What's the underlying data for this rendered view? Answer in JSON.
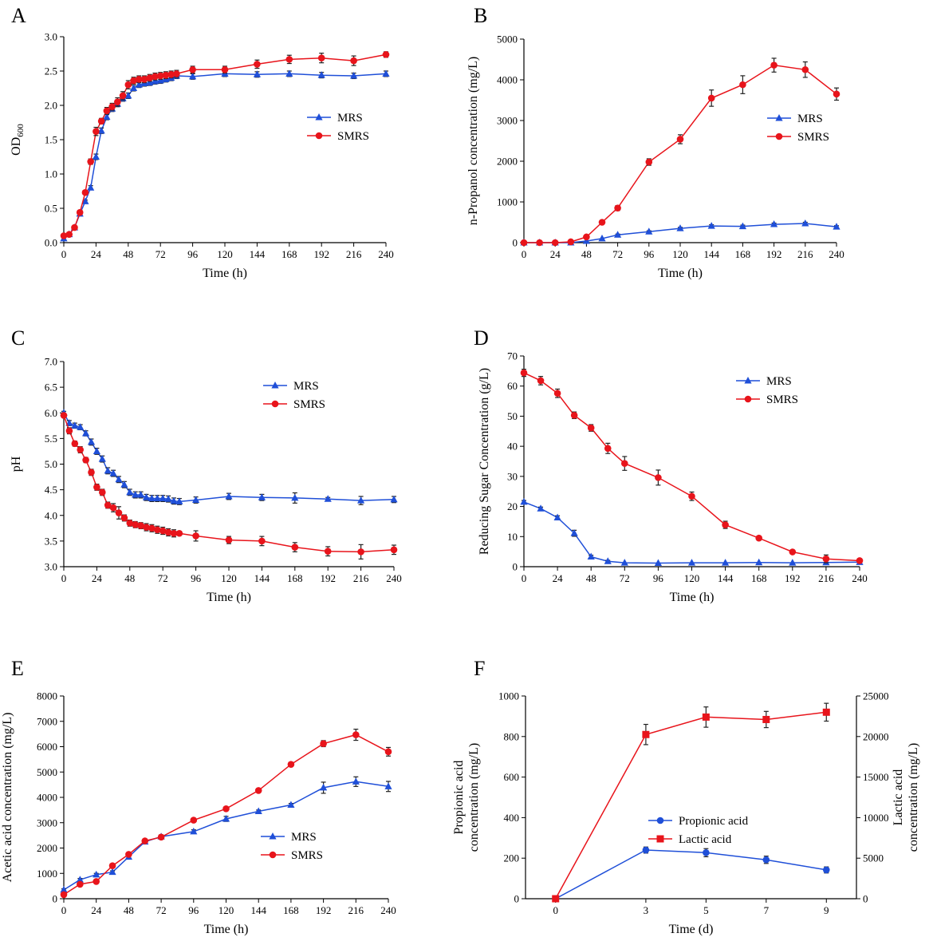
{
  "colors": {
    "MRS": "#1f4fd8",
    "SMRS": "#e8141b",
    "Propionic acid": "#1f4fd8",
    "Lactic acid": "#e8141b"
  },
  "chart_data": [
    {
      "panel_label": "A",
      "type": "line",
      "xlabel": "Time (h)",
      "ylabel": "OD600",
      "ylabel_main": "OD",
      "ylabel_sub": "600",
      "xlim": [
        0,
        240
      ],
      "ylim": [
        0,
        3.0
      ],
      "xticks": [
        0,
        24,
        48,
        72,
        96,
        120,
        144,
        168,
        192,
        216,
        240
      ],
      "yticks": [
        0.0,
        0.5,
        1.0,
        1.5,
        2.0,
        2.5,
        3.0
      ],
      "ytick_labels": [
        "0.0",
        "0.5",
        "1.0",
        "1.5",
        "2.0",
        "2.5",
        "3.0"
      ],
      "legend": [
        "MRS",
        "SMRS"
      ],
      "series": [
        {
          "name": "MRS",
          "marker": "triangle",
          "x": [
            0,
            4,
            8,
            12,
            16,
            20,
            24,
            28,
            32,
            36,
            40,
            44,
            48,
            52,
            56,
            60,
            64,
            68,
            72,
            76,
            80,
            84,
            96,
            120,
            144,
            168,
            192,
            216,
            240
          ],
          "y": [
            0.06,
            0.12,
            0.22,
            0.42,
            0.6,
            0.8,
            1.25,
            1.63,
            1.83,
            1.95,
            2.02,
            2.1,
            2.14,
            2.25,
            2.3,
            2.32,
            2.33,
            2.35,
            2.36,
            2.38,
            2.4,
            2.43,
            2.42,
            2.46,
            2.45,
            2.46,
            2.44,
            2.43,
            2.46
          ],
          "err": [
            0.01,
            0.01,
            0.02,
            0.02,
            0.02,
            0.03,
            0.04,
            0.04,
            0.04,
            0.04,
            0.04,
            0.04,
            0.04,
            0.04,
            0.04,
            0.04,
            0.04,
            0.04,
            0.04,
            0.04,
            0.04,
            0.04,
            0.04,
            0.04,
            0.04,
            0.04,
            0.04,
            0.04,
            0.04
          ]
        },
        {
          "name": "SMRS",
          "marker": "circle",
          "x": [
            0,
            4,
            8,
            12,
            16,
            20,
            24,
            28,
            32,
            36,
            40,
            44,
            48,
            52,
            56,
            60,
            64,
            68,
            72,
            76,
            80,
            84,
            96,
            120,
            144,
            168,
            192,
            216,
            240
          ],
          "y": [
            0.1,
            0.12,
            0.22,
            0.44,
            0.73,
            1.18,
            1.62,
            1.77,
            1.92,
            1.98,
            2.05,
            2.14,
            2.3,
            2.36,
            2.38,
            2.38,
            2.4,
            2.42,
            2.43,
            2.44,
            2.45,
            2.46,
            2.52,
            2.52,
            2.6,
            2.67,
            2.69,
            2.65,
            2.74
          ],
          "err": [
            0.01,
            0.02,
            0.02,
            0.03,
            0.03,
            0.04,
            0.06,
            0.04,
            0.05,
            0.05,
            0.06,
            0.06,
            0.06,
            0.05,
            0.05,
            0.05,
            0.05,
            0.05,
            0.05,
            0.05,
            0.05,
            0.05,
            0.05,
            0.05,
            0.06,
            0.06,
            0.07,
            0.07,
            0.04
          ]
        }
      ]
    },
    {
      "panel_label": "B",
      "type": "line",
      "xlabel": "Time (h)",
      "ylabel": "n-Propanol concentration (mg/L)",
      "xlim": [
        0,
        240
      ],
      "ylim": [
        0,
        5000
      ],
      "xticks": [
        0,
        24,
        48,
        72,
        96,
        120,
        144,
        168,
        192,
        216,
        240
      ],
      "yticks": [
        0,
        1000,
        2000,
        3000,
        4000,
        5000
      ],
      "ytick_labels": [
        "0",
        "1000",
        "2000",
        "3000",
        "4000",
        "5000"
      ],
      "legend": [
        "MRS",
        "SMRS"
      ],
      "series": [
        {
          "name": "MRS",
          "marker": "triangle",
          "x": [
            0,
            12,
            24,
            36,
            48,
            60,
            72,
            96,
            120,
            144,
            168,
            192,
            216,
            240
          ],
          "y": [
            0,
            0,
            0,
            0,
            40,
            100,
            190,
            270,
            350,
            410,
            400,
            450,
            470,
            390
          ],
          "err": [
            5,
            5,
            5,
            5,
            10,
            15,
            20,
            20,
            25,
            30,
            30,
            30,
            30,
            25
          ]
        },
        {
          "name": "SMRS",
          "marker": "circle",
          "x": [
            0,
            12,
            24,
            36,
            48,
            60,
            72,
            96,
            120,
            144,
            168,
            192,
            216,
            240
          ],
          "y": [
            0,
            0,
            0,
            20,
            140,
            500,
            850,
            1980,
            2540,
            3550,
            3880,
            4360,
            4250,
            3650
          ],
          "err": [
            5,
            5,
            5,
            10,
            20,
            40,
            60,
            80,
            110,
            200,
            220,
            170,
            190,
            150
          ]
        }
      ]
    },
    {
      "panel_label": "C",
      "type": "line",
      "xlabel": "Time (h)",
      "ylabel": "pH",
      "xlim": [
        0,
        240
      ],
      "ylim": [
        3.0,
        7.0
      ],
      "xticks": [
        0,
        24,
        48,
        72,
        96,
        120,
        144,
        168,
        192,
        216,
        240
      ],
      "yticks": [
        3.0,
        3.5,
        4.0,
        4.5,
        5.0,
        5.5,
        6.0,
        6.5,
        7.0
      ],
      "ytick_labels": [
        "3.0",
        "3.5",
        "4.0",
        "4.5",
        "5.0",
        "5.5",
        "6.0",
        "6.5",
        "7.0"
      ],
      "legend": [
        "MRS",
        "SMRS"
      ],
      "series": [
        {
          "name": "MRS",
          "marker": "triangle",
          "x": [
            0,
            4,
            8,
            12,
            16,
            20,
            24,
            28,
            32,
            36,
            40,
            44,
            48,
            52,
            56,
            60,
            64,
            68,
            72,
            76,
            80,
            84,
            96,
            120,
            144,
            168,
            192,
            216,
            240
          ],
          "y": [
            6.0,
            5.8,
            5.75,
            5.72,
            5.6,
            5.43,
            5.25,
            5.1,
            4.87,
            4.82,
            4.7,
            4.6,
            4.45,
            4.4,
            4.4,
            4.35,
            4.33,
            4.33,
            4.33,
            4.32,
            4.28,
            4.27,
            4.3,
            4.37,
            4.35,
            4.34,
            4.32,
            4.29,
            4.31
          ],
          "err": [
            0.03,
            0.05,
            0.05,
            0.05,
            0.05,
            0.06,
            0.06,
            0.06,
            0.06,
            0.06,
            0.06,
            0.06,
            0.06,
            0.06,
            0.06,
            0.06,
            0.06,
            0.06,
            0.06,
            0.06,
            0.06,
            0.06,
            0.06,
            0.06,
            0.06,
            0.1,
            0.03,
            0.08,
            0.06
          ]
        },
        {
          "name": "SMRS",
          "marker": "circle",
          "x": [
            0,
            4,
            8,
            12,
            16,
            20,
            24,
            28,
            32,
            36,
            40,
            44,
            48,
            52,
            56,
            60,
            64,
            68,
            72,
            76,
            80,
            84,
            96,
            120,
            144,
            168,
            192,
            216,
            240
          ],
          "y": [
            5.95,
            5.65,
            5.4,
            5.28,
            5.08,
            4.84,
            4.55,
            4.45,
            4.2,
            4.15,
            4.05,
            3.95,
            3.85,
            3.82,
            3.8,
            3.77,
            3.75,
            3.72,
            3.7,
            3.67,
            3.65,
            3.65,
            3.6,
            3.52,
            3.5,
            3.38,
            3.3,
            3.29,
            3.33
          ],
          "err": [
            0.04,
            0.06,
            0.05,
            0.06,
            0.05,
            0.06,
            0.06,
            0.06,
            0.06,
            0.08,
            0.12,
            0.06,
            0.06,
            0.06,
            0.06,
            0.07,
            0.07,
            0.07,
            0.07,
            0.07,
            0.07,
            0.04,
            0.1,
            0.07,
            0.09,
            0.09,
            0.09,
            0.14,
            0.09
          ]
        }
      ]
    },
    {
      "panel_label": "D",
      "type": "line",
      "xlabel": "Time (h)",
      "ylabel": "Reducing Sugar Concentration (g/L)",
      "xlim": [
        0,
        240
      ],
      "ylim": [
        0,
        70
      ],
      "xticks": [
        0,
        24,
        48,
        72,
        96,
        120,
        144,
        168,
        192,
        216,
        240
      ],
      "yticks": [
        0,
        10,
        20,
        30,
        40,
        50,
        60,
        70
      ],
      "ytick_labels": [
        "0",
        "10",
        "20",
        "30",
        "40",
        "50",
        "60",
        "70"
      ],
      "legend": [
        "MRS",
        "SMRS"
      ],
      "series": [
        {
          "name": "MRS",
          "marker": "triangle",
          "x": [
            0,
            12,
            24,
            36,
            48,
            60,
            72,
            96,
            120,
            144,
            168,
            192,
            216,
            240
          ],
          "y": [
            21.5,
            19.3,
            16.3,
            11.1,
            3.3,
            1.8,
            1.3,
            1.2,
            1.3,
            1.3,
            1.4,
            1.3,
            1.4,
            1.5
          ],
          "err": [
            0.5,
            0.5,
            0.6,
            1.0,
            0.5,
            0.3,
            0.2,
            0.2,
            0.2,
            0.2,
            0.2,
            0.2,
            0.2,
            0.2
          ]
        },
        {
          "name": "SMRS",
          "marker": "circle",
          "x": [
            0,
            12,
            24,
            36,
            48,
            60,
            72,
            96,
            120,
            144,
            168,
            192,
            216,
            240
          ],
          "y": [
            64.4,
            61.8,
            57.6,
            50.3,
            46.1,
            39.3,
            34.3,
            29.6,
            23.4,
            13.9,
            9.5,
            4.9,
            2.6,
            2.0
          ],
          "err": [
            1.2,
            1.4,
            1.4,
            1.1,
            1.1,
            1.7,
            2.3,
            2.5,
            1.4,
            1.2,
            0.5,
            0.6,
            1.3,
            0.4
          ]
        }
      ]
    },
    {
      "panel_label": "E",
      "type": "line",
      "xlabel": "Time (h)",
      "ylabel": "Acetic acid concentration (mg/L)",
      "xlim": [
        0,
        240
      ],
      "ylim": [
        0,
        8000
      ],
      "xticks": [
        0,
        24,
        48,
        72,
        96,
        120,
        144,
        168,
        192,
        216,
        240
      ],
      "yticks": [
        0,
        1000,
        2000,
        3000,
        4000,
        5000,
        6000,
        7000,
        8000
      ],
      "ytick_labels": [
        "0",
        "1000",
        "2000",
        "3000",
        "4000",
        "5000",
        "6000",
        "7000",
        "8000"
      ],
      "legend": [
        "MRS",
        "SMRS"
      ],
      "series": [
        {
          "name": "MRS",
          "marker": "triangle",
          "x": [
            0,
            12,
            24,
            36,
            48,
            60,
            72,
            96,
            120,
            144,
            168,
            192,
            216,
            240
          ],
          "y": [
            350,
            750,
            950,
            1050,
            1650,
            2250,
            2450,
            2650,
            3150,
            3450,
            3700,
            4380,
            4620,
            4430
          ],
          "err": [
            40,
            50,
            50,
            50,
            60,
            60,
            70,
            70,
            100,
            50,
            60,
            220,
            190,
            200
          ]
        },
        {
          "name": "SMRS",
          "marker": "circle",
          "x": [
            0,
            12,
            24,
            36,
            48,
            60,
            72,
            96,
            120,
            144,
            168,
            192,
            216,
            240
          ],
          "y": [
            160,
            570,
            680,
            1300,
            1750,
            2280,
            2430,
            3100,
            3550,
            4270,
            5300,
            6120,
            6470,
            5800
          ],
          "err": [
            30,
            40,
            40,
            40,
            60,
            60,
            60,
            60,
            60,
            60,
            60,
            120,
            220,
            170
          ]
        }
      ]
    },
    {
      "panel_label": "F",
      "type": "line",
      "xlabel": "Time (d)",
      "ylabel": "Propionic acid concentration (mg/L)",
      "ylabel_lines": [
        "Propionic acid",
        "concentration (mg/L)"
      ],
      "y2label": "Lactic acid concentration (mg/L)",
      "y2label_lines": [
        "Lactic acid",
        "concentration (mg/L)"
      ],
      "xlim": [
        -1,
        10
      ],
      "ylim": [
        0,
        1000
      ],
      "y2lim": [
        0,
        25000
      ],
      "xticks": [
        0,
        3,
        5,
        7,
        9
      ],
      "yticks": [
        0,
        200,
        400,
        600,
        800,
        1000
      ],
      "ytick_labels": [
        "0",
        "200",
        "400",
        "600",
        "800",
        "1000"
      ],
      "y2ticks": [
        0,
        5000,
        10000,
        15000,
        20000,
        25000
      ],
      "y2tick_labels": [
        "0",
        "5000",
        "10000",
        "15000",
        "20000",
        "25000"
      ],
      "legend": [
        "Propionic acid",
        "Lactic acid"
      ],
      "series": [
        {
          "name": "Propionic acid",
          "marker": "circle",
          "axis": "left",
          "x": [
            0,
            3,
            5,
            7,
            9
          ],
          "y": [
            0,
            240,
            227,
            192,
            142
          ],
          "err": [
            5,
            15,
            20,
            18,
            15
          ]
        },
        {
          "name": "Lactic acid",
          "marker": "square",
          "axis": "right",
          "x": [
            0,
            3,
            5,
            7,
            9
          ],
          "y": [
            0,
            20250,
            22400,
            22100,
            23000
          ],
          "err": [
            50,
            1250,
            1250,
            1000,
            1100
          ]
        }
      ]
    }
  ]
}
